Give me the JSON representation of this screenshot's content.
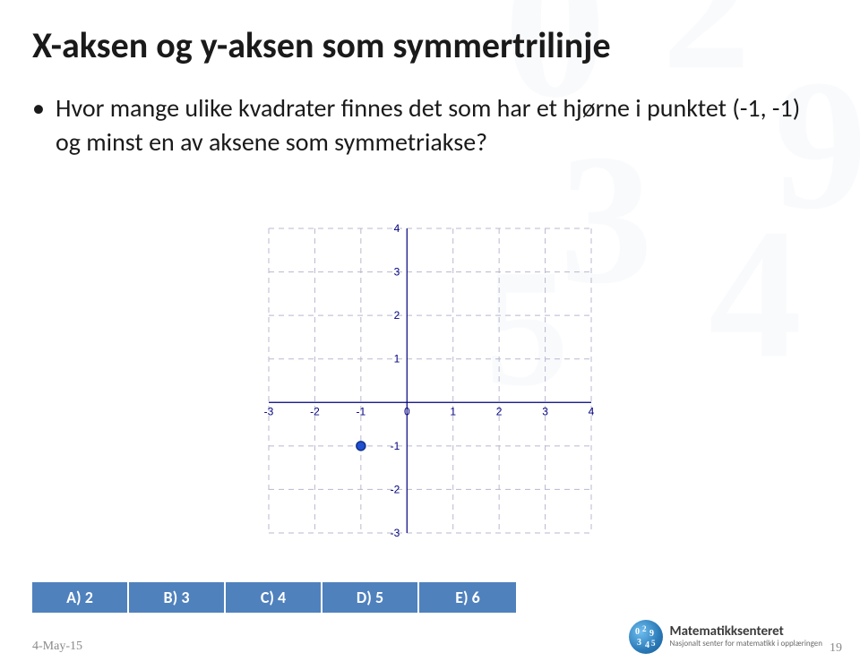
{
  "title": "X-aksen og y-aksen som symmertrilinje",
  "bullets": [
    "Hvor mange ulike kvadrater finnes det som har et hjørne i punktet (-1, -1) og minst en av aksene som symmetriakse?"
  ],
  "chart": {
    "type": "scatter",
    "xlim": [
      -3,
      4
    ],
    "ylim": [
      -3,
      4
    ],
    "xtick_step": 1,
    "ytick_step": 1,
    "grid_color": "#b8b8d0",
    "grid_dash": "6 5",
    "axis_color": "#000080",
    "label_color": "#000080",
    "label_fontsize": 12,
    "background_color": "#ffffff",
    "points": [
      {
        "x": -1,
        "y": -1,
        "color": "#2050d0",
        "stroke": "#10308a",
        "r": 5
      }
    ]
  },
  "answers": {
    "bg_color": "#4f81bd",
    "text_color": "#ffffff",
    "options": [
      {
        "label": "A) 2"
      },
      {
        "label": "B) 3"
      },
      {
        "label": "C) 4"
      },
      {
        "label": "D) 5"
      },
      {
        "label": "E) 6"
      }
    ]
  },
  "footer": {
    "date": "4-May-15",
    "page_number": "19"
  },
  "branding": {
    "name": "Matematikksenteret",
    "tagline": "Nasjonalt senter for matematikk i opplæringen"
  },
  "watermark": {
    "text": "012345",
    "color": "#9fb8d8"
  }
}
